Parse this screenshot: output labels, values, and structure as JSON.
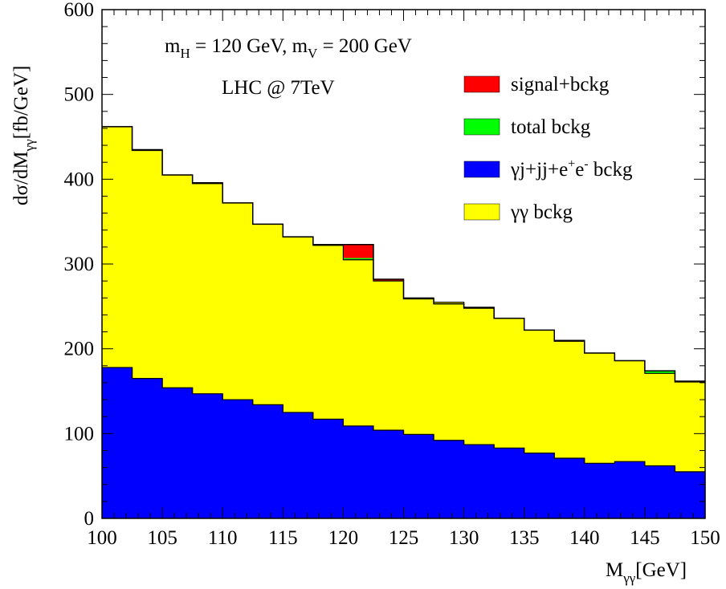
{
  "chart_data": {
    "type": "area",
    "title": "",
    "xlabel": {
      "main": "M",
      "sub": "γγ",
      "unit": "[GeV]"
    },
    "ylabel": {
      "pre": "dσ/dM",
      "sub": "γγ",
      "post": "[fb/GeV]"
    },
    "xlim": [
      100,
      150
    ],
    "ylim": [
      0,
      600
    ],
    "x_ticks": [
      "100",
      "105",
      "110",
      "115",
      "120",
      "125",
      "130",
      "135",
      "140",
      "145",
      "150"
    ],
    "y_ticks": [
      "0",
      "100",
      "200",
      "300",
      "400",
      "500",
      "600"
    ],
    "annotations": {
      "params": {
        "m1": "m",
        "m1_sub": "H",
        "m1_val": " = 120 GeV, ",
        "m2": "m",
        "m2_sub": "V",
        "m2_val": " = 200 GeV"
      },
      "collider": "LHC @ 7TeV"
    },
    "legend": {
      "placement": "top-right",
      "entries": [
        {
          "label": "signal+bckg",
          "color": "#ff0000"
        },
        {
          "label": "total bckg",
          "color": "#00ff00"
        },
        {
          "label_parts": [
            "γj+jj+e",
            "+",
            "e",
            "-",
            " bckg"
          ],
          "color": "#0000ff"
        },
        {
          "label": "γγ bckg",
          "color": "#ffff00"
        }
      ]
    },
    "bin_edges": [
      100,
      102.5,
      105,
      107.5,
      110,
      112.5,
      115,
      117.5,
      120,
      122.5,
      125,
      127.5,
      130,
      132.5,
      135,
      137.5,
      140,
      142.5,
      145,
      147.5,
      150
    ],
    "series": [
      {
        "name": "signal+bckg",
        "color": "#ff0000",
        "values": [
          462,
          434,
          405,
          395,
          372,
          347,
          332,
          323,
          323,
          282,
          259,
          253,
          248,
          236,
          222,
          209,
          195,
          186,
          174,
          161,
          152
        ]
      },
      {
        "name": "total bckg",
        "color": "#00ff00",
        "values": [
          462,
          434,
          405,
          395,
          372,
          347,
          332,
          320,
          307,
          279,
          259,
          253,
          248,
          236,
          222,
          209,
          195,
          186,
          174,
          161,
          152
        ]
      },
      {
        "name": "γj+jj+e+e- bckg",
        "color": "#0000ff",
        "values": [
          178,
          165,
          154,
          147,
          140,
          134,
          125,
          117,
          109,
          104,
          99,
          92,
          87,
          83,
          77,
          71,
          65,
          67,
          62,
          55,
          52
        ]
      },
      {
        "name": "γγ bckg",
        "color": "#ffff00",
        "values": [
          284,
          270,
          251,
          249,
          232,
          213,
          207,
          205,
          196,
          176,
          161,
          163,
          162,
          153,
          145,
          139,
          130,
          119,
          109,
          107,
          101
        ]
      }
    ]
  }
}
